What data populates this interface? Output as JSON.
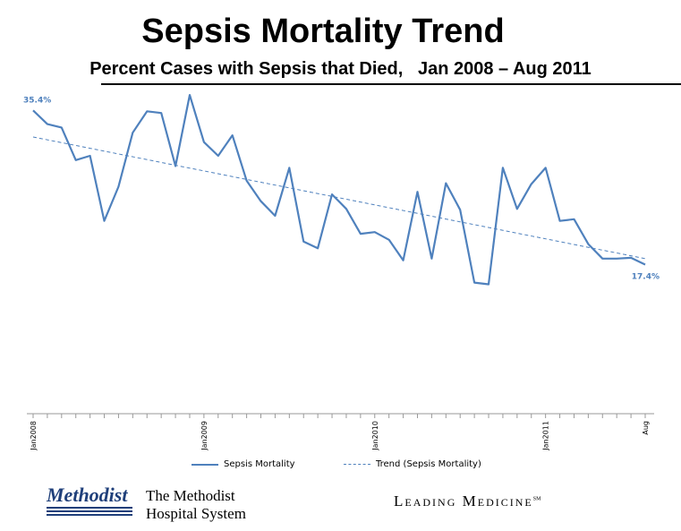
{
  "header": {
    "title": "Sepsis Mortality Trend",
    "subtitle": "Percent Cases with Sepsis that Died,   Jan 2008 – Aug 2011"
  },
  "legend": {
    "series_label": "Sepsis Mortality",
    "trend_label": "Trend (Sepsis Mortality)"
  },
  "footer": {
    "brand": "Methodist",
    "system_line1": "The Methodist",
    "system_line2": "Hospital System",
    "tagline": "Leading Medicine",
    "tagline_mark": "SM"
  },
  "chart_data": {
    "type": "line",
    "title": "Sepsis Mortality Trend",
    "subtitle": "Percent Cases with Sepsis that Died,   Jan 2008 – Aug 2011",
    "xlabel": "",
    "ylabel": "",
    "ylim": [
      0,
      37
    ],
    "grid": false,
    "legend_position": "bottom",
    "x_tick_labels": [
      {
        "index": 0,
        "label": "Jan2008"
      },
      {
        "index": 12,
        "label": "Jan2009"
      },
      {
        "index": 24,
        "label": "Jan2010"
      },
      {
        "index": 36,
        "label": "Jan2011"
      },
      {
        "index": 43,
        "label": "Aug"
      }
    ],
    "series": [
      {
        "name": "Sepsis Mortality",
        "values": [
          35.4,
          33.8,
          33.4,
          29.6,
          30.1,
          22.5,
          26.5,
          32.8,
          35.3,
          35.1,
          28.9,
          37.2,
          31.7,
          30.1,
          32.5,
          27.2,
          24.8,
          23.1,
          28.7,
          20.1,
          19.3,
          25.6,
          23.9,
          21.0,
          21.2,
          20.3,
          17.9,
          25.9,
          18.1,
          26.9,
          23.8,
          15.3,
          15.1,
          28.7,
          23.9,
          26.8,
          28.7,
          22.5,
          22.7,
          19.8,
          18.1,
          18.1,
          18.2,
          17.4
        ],
        "first_label": "35.4%",
        "last_label": "17.4%"
      },
      {
        "name": "Trend (Sepsis Mortality)",
        "type": "linear-trend",
        "values": [
          32.3,
          18.1
        ]
      }
    ],
    "colors": {
      "series": "#4f81bd",
      "label": "#4f81bd"
    }
  }
}
